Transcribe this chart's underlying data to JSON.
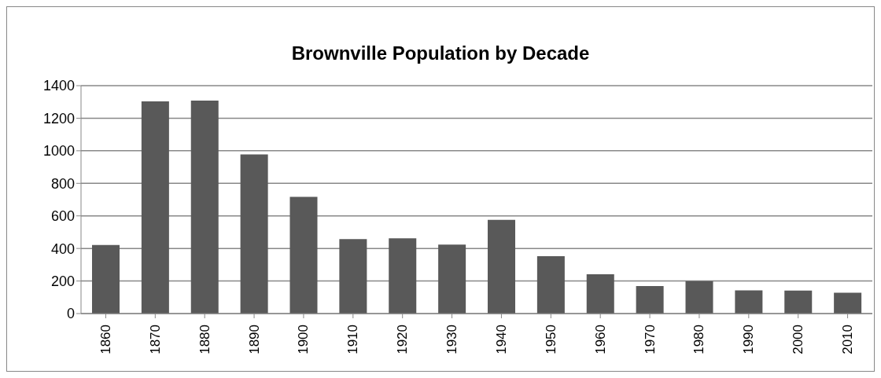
{
  "chart_data": {
    "type": "bar",
    "title": "Brownville Population by Decade",
    "categories": [
      "1860",
      "1870",
      "1880",
      "1890",
      "1900",
      "1910",
      "1920",
      "1930",
      "1940",
      "1950",
      "1960",
      "1970",
      "1980",
      "1990",
      "2000",
      "2010"
    ],
    "values": [
      421,
      1304,
      1308,
      978,
      717,
      457,
      462,
      424,
      576,
      353,
      241,
      169,
      199,
      143,
      141,
      128
    ],
    "color": "#595959",
    "ylim": [
      0,
      1400
    ],
    "yticks": [
      0,
      200,
      400,
      600,
      800,
      1000,
      1200,
      1400
    ],
    "grid": "y",
    "legend": false
  }
}
